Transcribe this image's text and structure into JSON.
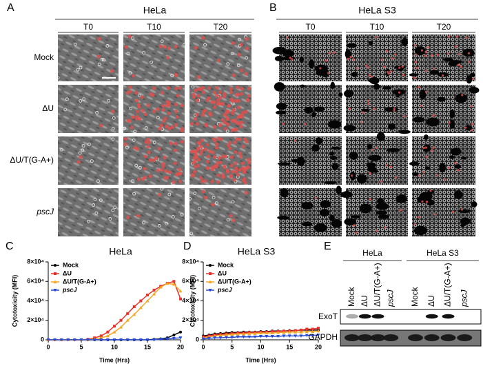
{
  "panel_a": {
    "label": "A",
    "title": "HeLa",
    "columns": [
      "T0",
      "T10",
      "T20"
    ],
    "rows": [
      "Mock",
      "ΔU",
      "ΔU/T(G-A+)",
      "pscJ"
    ]
  },
  "panel_b": {
    "label": "B",
    "title": "HeLa S3",
    "columns": [
      "T0",
      "T10",
      "T20"
    ]
  },
  "chart_data": [
    {
      "type": "line",
      "label": "C",
      "title": "HeLa",
      "y_label": "Cytotoxicity (MFI)",
      "x_label": "Time (Hrs)",
      "x": [
        0,
        1,
        2,
        3,
        4,
        5,
        6,
        7,
        8,
        9,
        10,
        11,
        12,
        13,
        14,
        15,
        16,
        17,
        18,
        19,
        20
      ],
      "xlim": [
        0,
        20
      ],
      "xticks": [
        0,
        5,
        10,
        15,
        20
      ],
      "ylim": [
        0,
        80000
      ],
      "yticks": [
        {
          "value": 0,
          "label": "0"
        },
        {
          "value": 20000,
          "label": "2×10⁴"
        },
        {
          "value": 40000,
          "label": "4×10⁴"
        },
        {
          "value": 60000,
          "label": "6×10⁴"
        },
        {
          "value": 80000,
          "label": "8×10⁴"
        }
      ],
      "legend": "upper left",
      "series": [
        {
          "name": "Mock",
          "color": "#000000",
          "marker": "circle",
          "values": [
            0,
            0,
            0,
            0,
            0,
            0,
            0,
            0,
            0,
            0,
            0,
            0,
            0,
            0,
            0,
            0,
            500,
            1000,
            2000,
            5000,
            8000
          ]
        },
        {
          "name": "ΔU",
          "color": "#e8312a",
          "marker": "square",
          "values": [
            0,
            0,
            0,
            0,
            0,
            0,
            500,
            2000,
            4000,
            8000,
            14000,
            20000,
            27000,
            34000,
            40000,
            46000,
            51000,
            55000,
            58000,
            60000,
            42000
          ]
        },
        {
          "name": "ΔU/T(G-A+)",
          "color": "#f5a623",
          "marker": "triangle",
          "values": [
            0,
            0,
            0,
            0,
            0,
            0,
            0,
            1000,
            2000,
            4000,
            8000,
            13000,
            20000,
            26000,
            33000,
            40000,
            47000,
            54000,
            58000,
            57000,
            50000
          ]
        },
        {
          "name": "pscJ",
          "color": "#2a4bd7",
          "marker": "triangle-down",
          "values": [
            0,
            0,
            0,
            0,
            0,
            0,
            0,
            0,
            0,
            0,
            0,
            0,
            0,
            0,
            0,
            0,
            0,
            500,
            1000,
            1500,
            2000
          ]
        }
      ]
    },
    {
      "type": "line",
      "label": "D",
      "title": "HeLa S3",
      "y_label": "Cytotoxicity (MFI)",
      "x_label": "Time (Hrs)",
      "x": [
        0,
        1,
        2,
        3,
        4,
        5,
        6,
        7,
        8,
        9,
        10,
        11,
        12,
        13,
        14,
        15,
        16,
        17,
        18,
        19,
        20
      ],
      "xlim": [
        0,
        20
      ],
      "xticks": [
        0,
        5,
        10,
        15,
        20
      ],
      "ylim": [
        0,
        80000
      ],
      "yticks": [
        {
          "value": 0,
          "label": "0"
        },
        {
          "value": 20000,
          "label": "2×10⁴"
        },
        {
          "value": 40000,
          "label": "4×10⁴"
        },
        {
          "value": 60000,
          "label": "6×10⁴"
        },
        {
          "value": 80000,
          "label": "8×10⁴"
        }
      ],
      "legend": "upper left",
      "series": [
        {
          "name": "Mock",
          "color": "#000000",
          "marker": "circle",
          "values": [
            4000,
            5000,
            6000,
            6500,
            7000,
            7500,
            7500,
            8000,
            8000,
            8000,
            8500,
            8500,
            9000,
            9000,
            9000,
            9500,
            9500,
            10000,
            10000,
            10000,
            10000
          ]
        },
        {
          "name": "ΔU",
          "color": "#e8312a",
          "marker": "square",
          "values": [
            3000,
            4000,
            5000,
            5500,
            6000,
            6500,
            7000,
            7000,
            7500,
            7500,
            8000,
            8000,
            8500,
            8500,
            9000,
            9000,
            9500,
            10000,
            11000,
            11000,
            12000
          ]
        },
        {
          "name": "ΔU/T(G-A+)",
          "color": "#f5a623",
          "marker": "triangle",
          "values": [
            2000,
            3000,
            4000,
            4500,
            5000,
            5500,
            6000,
            6000,
            6500,
            6500,
            7000,
            7000,
            7000,
            7500,
            7500,
            8000,
            8000,
            8000,
            8500,
            8500,
            9000
          ]
        },
        {
          "name": "pscJ",
          "color": "#2a4bd7",
          "marker": "triangle-down",
          "values": [
            1000,
            1500,
            2000,
            2000,
            2500,
            2500,
            3000,
            3000,
            3000,
            3000,
            3500,
            3500,
            3500,
            3500,
            4000,
            4000,
            4000,
            4000,
            4500,
            4500,
            5000
          ]
        }
      ]
    }
  ],
  "panel_e": {
    "label": "E",
    "groups": [
      "HeLa",
      "HeLa S3"
    ],
    "lanes": [
      "Mock",
      "ΔU",
      "ΔU/T(G-A+)",
      "pscJ"
    ],
    "bands": [
      "ExoT",
      "GAPDH"
    ]
  }
}
